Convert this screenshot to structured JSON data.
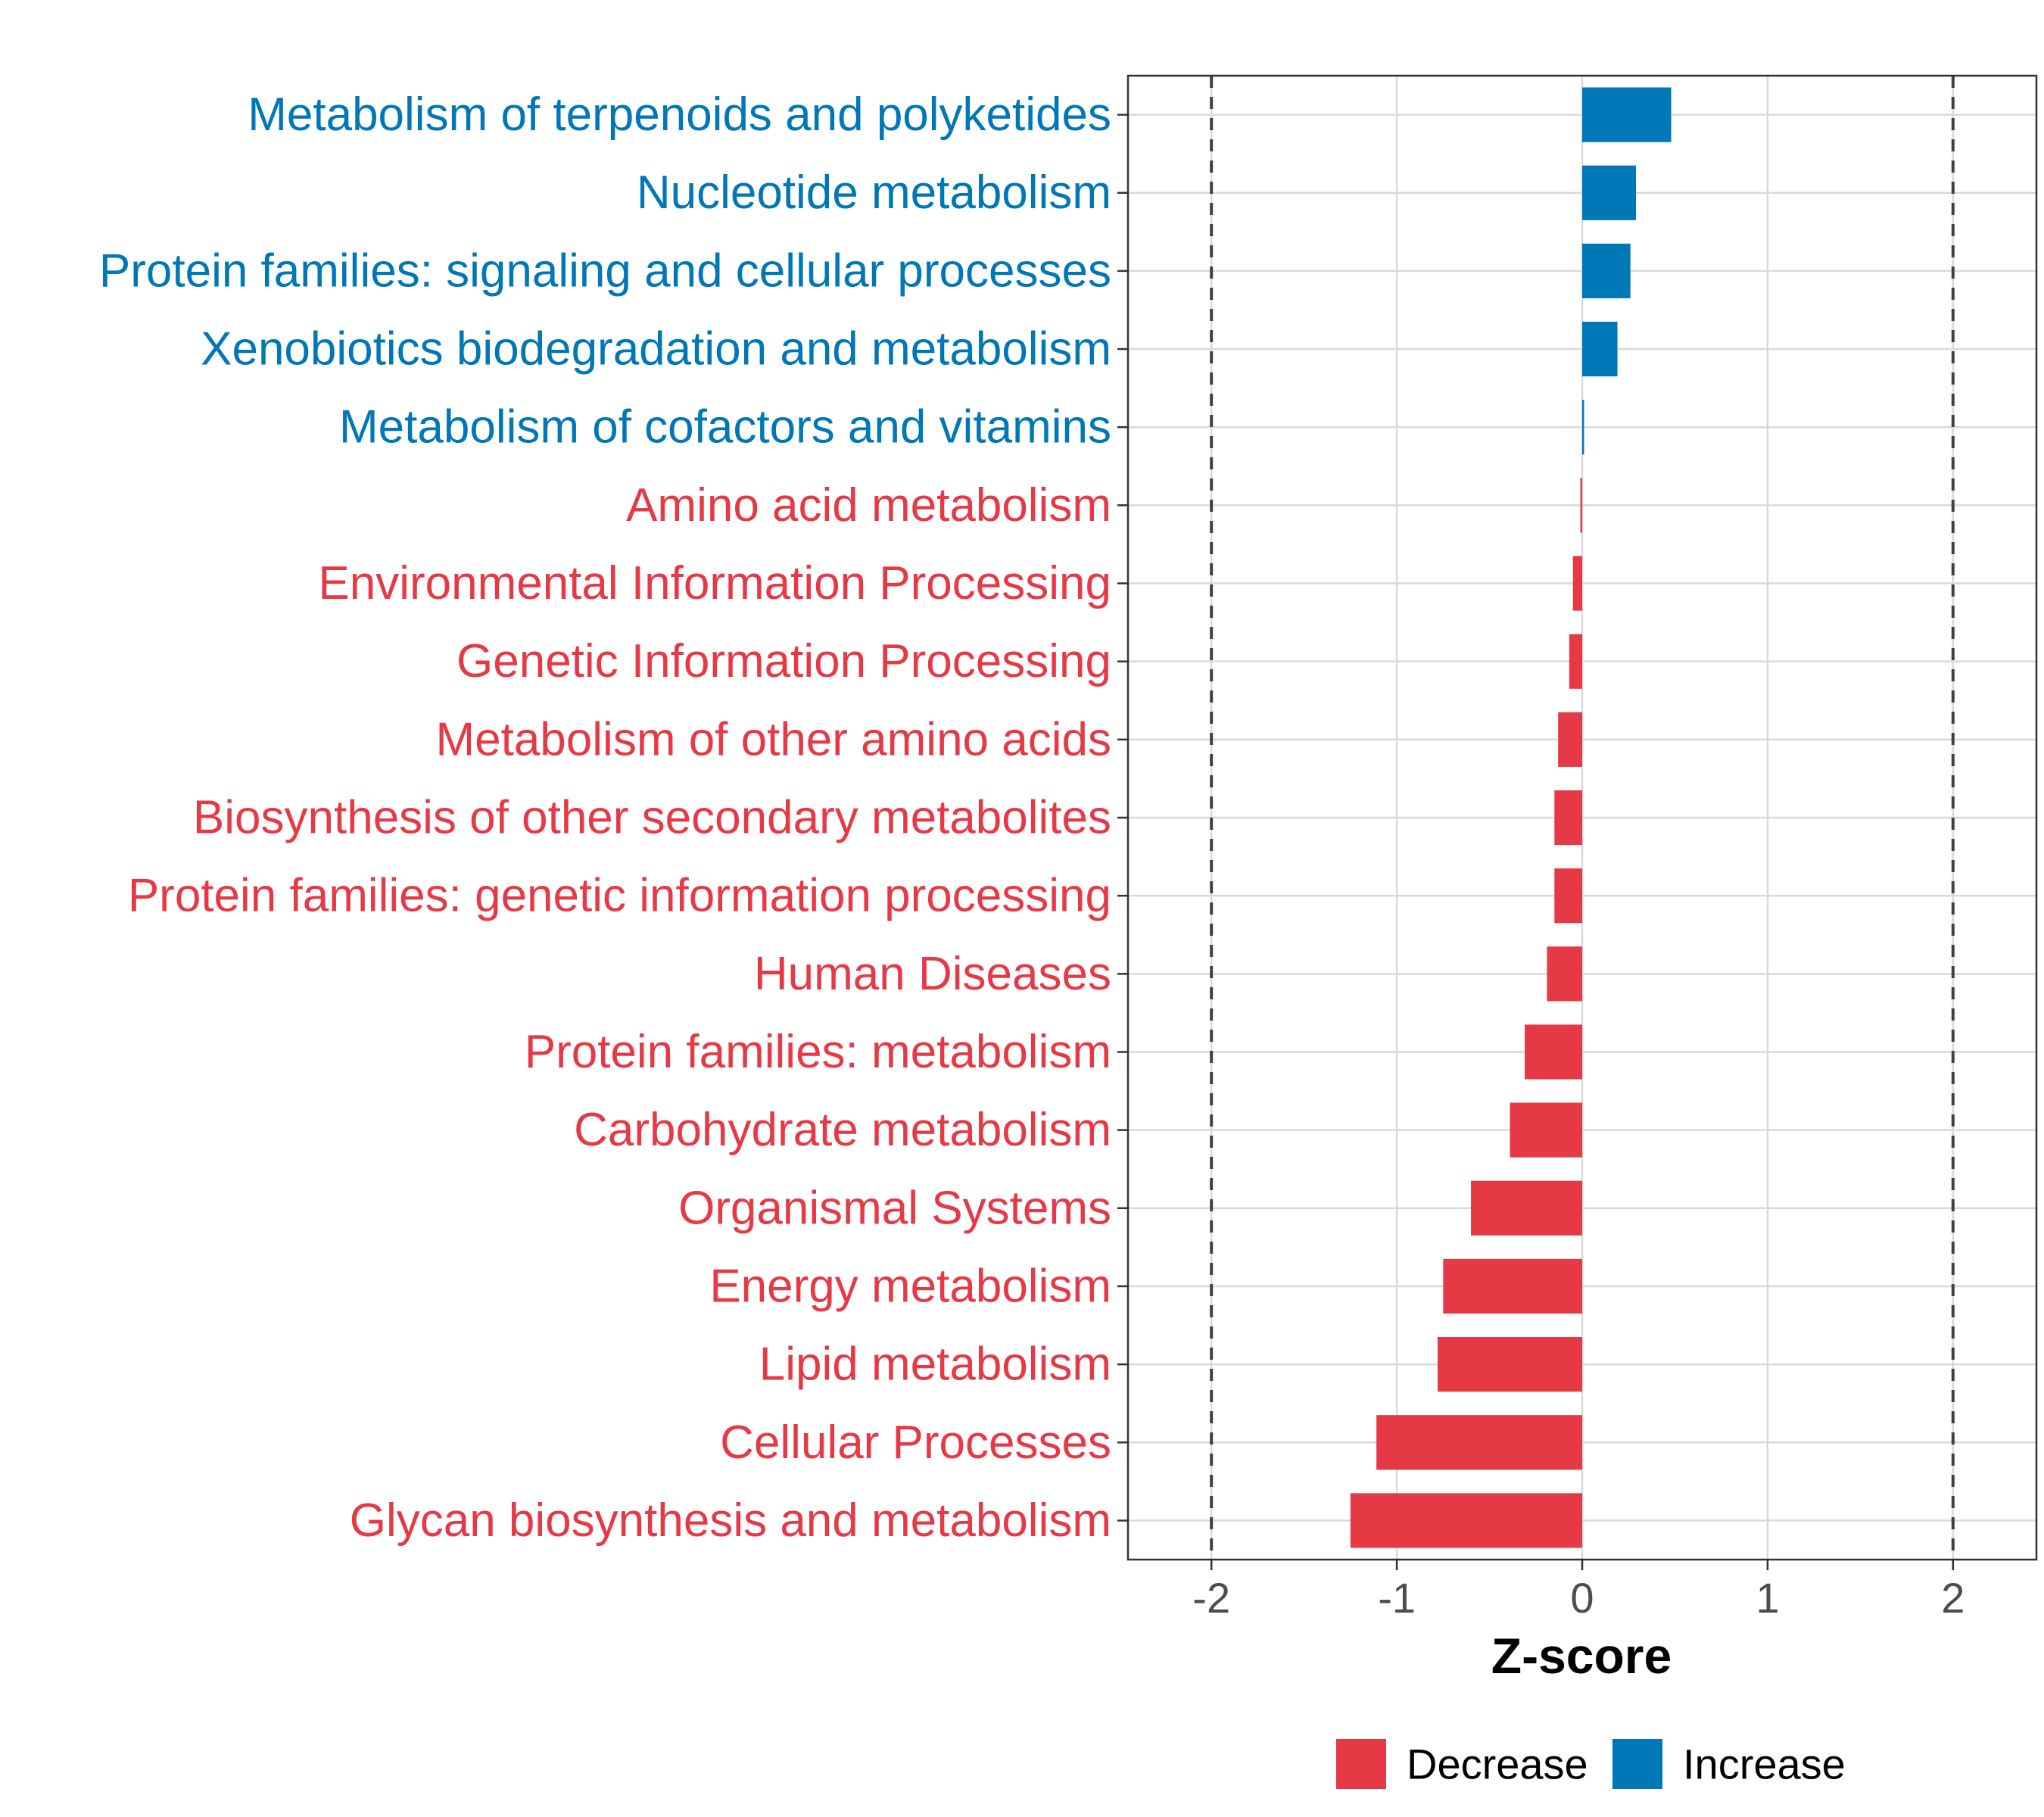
{
  "chart_data": {
    "type": "bar",
    "orientation": "horizontal",
    "xlabel": "Z-score",
    "xlim": [
      -2.45,
      2.45
    ],
    "xticks": [
      "-2",
      "-1",
      "0",
      "1",
      "2"
    ],
    "xtick_values": [
      -2,
      -1,
      0,
      1,
      2
    ],
    "reference_lines": [
      -2,
      2
    ],
    "grid": true,
    "categories": [
      "Metabolism of terpenoids and polyketides",
      "Nucleotide metabolism",
      "Protein families: signaling and cellular processes",
      "Xenobiotics biodegradation and metabolism",
      "Metabolism of cofactors and vitamins",
      "Amino acid metabolism",
      "Environmental Information Processing",
      "Genetic Information Processing",
      "Metabolism of other amino acids",
      "Biosynthesis of other secondary metabolites",
      "Protein families: genetic information processing",
      "Human Diseases",
      "Protein families: metabolism",
      "Carbohydrate metabolism",
      "Organismal Systems",
      "Energy metabolism",
      "Lipid metabolism",
      "Cellular Processes",
      "Glycan biosynthesis and metabolism"
    ],
    "values": [
      0.48,
      0.29,
      0.26,
      0.19,
      0.01,
      -0.01,
      -0.05,
      -0.07,
      -0.13,
      -0.15,
      -0.15,
      -0.19,
      -0.31,
      -0.39,
      -0.6,
      -0.75,
      -0.78,
      -1.11,
      -1.25
    ],
    "legend": {
      "position": "bottom",
      "items": [
        {
          "label": "Decrease",
          "color": "#E63946"
        },
        {
          "label": "Increase",
          "color": "#0077B6"
        }
      ]
    },
    "colors": {
      "decrease": "#E63946",
      "increase": "#0077B6"
    }
  }
}
